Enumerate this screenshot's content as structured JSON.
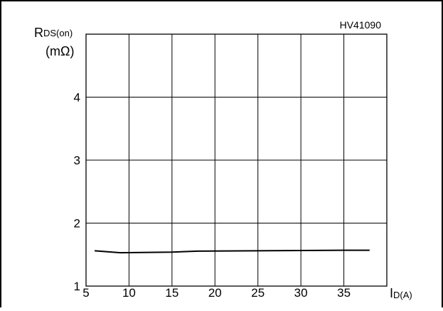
{
  "chart_data": {
    "type": "line",
    "code": "HV41090",
    "ylabel_main": "R",
    "ylabel_sub": "DS(on)",
    "ylabel_unit": "(mΩ)",
    "xlabel_main": "I",
    "xlabel_sub": "D(A)",
    "xlim": [
      5,
      40
    ],
    "ylim": [
      1,
      5
    ],
    "x_ticks": [
      5,
      10,
      15,
      20,
      25,
      30,
      35
    ],
    "x_tick_labels": [
      "5",
      "10",
      "15",
      "20",
      "25",
      "30",
      "35"
    ],
    "y_ticks": [
      1,
      2,
      3,
      4
    ],
    "y_tick_labels": [
      "1",
      "2",
      "3",
      "4"
    ],
    "grid": true,
    "series": [
      {
        "x": [
          6,
          9,
          15,
          18,
          25,
          30,
          35,
          38
        ],
        "y": [
          1.56,
          1.53,
          1.54,
          1.555,
          1.56,
          1.565,
          1.57,
          1.57
        ]
      }
    ],
    "line_color": "#000000"
  }
}
